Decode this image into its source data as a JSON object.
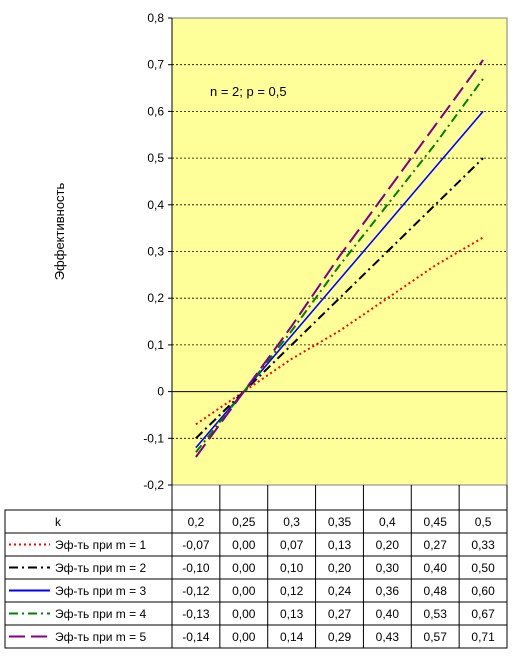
{
  "chart_data": {
    "type": "line",
    "ylabel": "Эффективность",
    "annotation": "n = 2; p = 0,5",
    "ylim": [
      -0.2,
      0.8
    ],
    "yticks": [
      "-0,2",
      "-0,1",
      "0",
      "0,1",
      "0,2",
      "0,3",
      "0,4",
      "0,5",
      "0,6",
      "0,7",
      "0,8"
    ],
    "categories": [
      "0,2",
      "0,25",
      "0,3",
      "0,35",
      "0,4",
      "0,45",
      "0,5"
    ],
    "x": [
      0.2,
      0.25,
      0.3,
      0.35,
      0.4,
      0.45,
      0.5
    ],
    "table_header": "k",
    "plot_background": "#ffff99",
    "grid": true,
    "legend_placement": "data-table-below",
    "series": [
      {
        "name": "Эф-ть при m = 1",
        "values": [
          -0.07,
          0.0,
          0.07,
          0.13,
          0.2,
          0.27,
          0.33
        ],
        "labels": [
          "-0,07",
          "0,00",
          "0,07",
          "0,13",
          "0,20",
          "0,27",
          "0,33"
        ],
        "color": "#ff0000",
        "dash": "dotted"
      },
      {
        "name": "Эф-ть при m = 2",
        "values": [
          -0.1,
          0.0,
          0.1,
          0.2,
          0.3,
          0.4,
          0.5
        ],
        "labels": [
          "-0,10",
          "0,00",
          "0,10",
          "0,20",
          "0,30",
          "0,40",
          "0,50"
        ],
        "color": "#000000",
        "dash": "dash-dot"
      },
      {
        "name": "Эф-ть при m = 3",
        "values": [
          -0.12,
          0.0,
          0.12,
          0.24,
          0.36,
          0.48,
          0.6
        ],
        "labels": [
          "-0,12",
          "0,00",
          "0,12",
          "0,24",
          "0,36",
          "0,48",
          "0,60"
        ],
        "color": "#0000ff",
        "dash": "solid"
      },
      {
        "name": "Эф-ть при m = 4",
        "values": [
          -0.13,
          0.0,
          0.13,
          0.27,
          0.4,
          0.53,
          0.67
        ],
        "labels": [
          "-0,13",
          "0,00",
          "0,13",
          "0,27",
          "0,40",
          "0,53",
          "0,67"
        ],
        "color": "#008000",
        "dash": "dash-dot"
      },
      {
        "name": "Эф-ть при m = 5",
        "values": [
          -0.14,
          0.0,
          0.14,
          0.29,
          0.43,
          0.57,
          0.71
        ],
        "labels": [
          "-0,14",
          "0,00",
          "0,14",
          "0,29",
          "0,43",
          "0,57",
          "0,71"
        ],
        "color": "#800080",
        "dash": "long-dash"
      }
    ]
  }
}
